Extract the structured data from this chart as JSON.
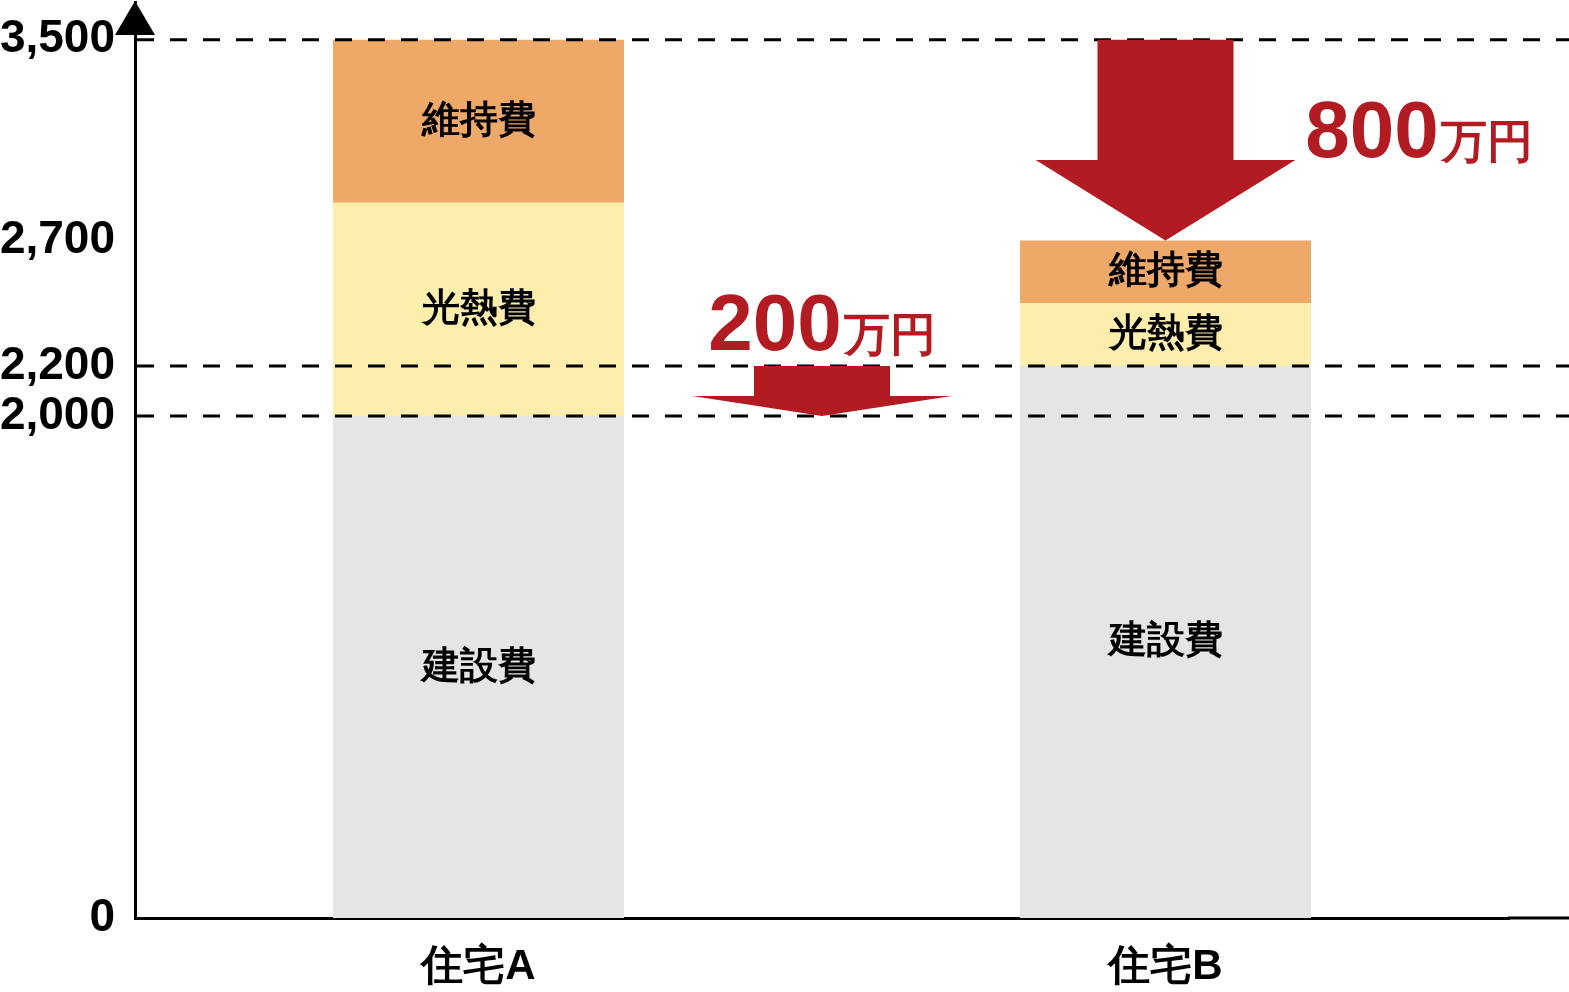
{
  "chart_data": {
    "type": "bar",
    "categories": [
      "住宅A",
      "住宅B"
    ],
    "series": [
      {
        "name": "建設費",
        "color": "#e5e5e5",
        "values": [
          2000,
          2200
        ]
      },
      {
        "name": "光熱費",
        "color": "#fdeeae",
        "values": [
          850,
          250
        ]
      },
      {
        "name": "維持費",
        "color": "#eea868",
        "values": [
          650,
          250
        ]
      }
    ],
    "stacked": true,
    "ylim": [
      0,
      3650
    ],
    "yticks": [
      0,
      {
        "value": 2000,
        "label": "2,000"
      },
      {
        "value": 2200,
        "label": "2,200"
      },
      {
        "value": 2700,
        "label": "2,700"
      },
      {
        "value": 3500,
        "label": "3,500"
      }
    ],
    "ref_lines": [
      {
        "axis": "y",
        "value": 3500,
        "line_style": "dashed"
      },
      {
        "axis": "y",
        "value": 2200,
        "line_style": "dashed"
      },
      {
        "axis": "y",
        "value": 2000,
        "line_style": "dashed"
      }
    ],
    "annotations": [
      {
        "text": "200万円",
        "y": 2000
      },
      {
        "text": "800万円",
        "x": "住宅B",
        "y": 2700
      }
    ]
  }
}
